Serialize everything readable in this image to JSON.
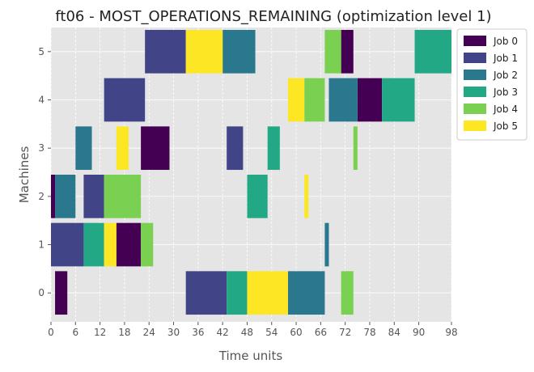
{
  "chart_data": {
    "type": "gantt",
    "title": "ft06 - MOST_OPERATIONS_REMAINING (optimization level 1)",
    "xlabel": "Time units",
    "ylabel": "Machines",
    "xlim": [
      0,
      98
    ],
    "ylim": [
      -0.6,
      5.5
    ],
    "x_ticks": [
      0,
      6,
      12,
      18,
      24,
      30,
      36,
      42,
      48,
      54,
      60,
      66,
      72,
      78,
      84,
      90,
      98
    ],
    "y_ticks": [
      0,
      1,
      2,
      3,
      4,
      5
    ],
    "grid": true,
    "legend_position": "outside-top-right",
    "series": [
      {
        "name": "Job 0",
        "color": "#440154",
        "tasks": [
          {
            "machine": 0,
            "start": 1,
            "end": 4
          },
          {
            "machine": 1,
            "start": 16,
            "end": 22
          },
          {
            "machine": 2,
            "start": 0,
            "end": 1
          },
          {
            "machine": 3,
            "start": 22,
            "end": 29
          },
          {
            "machine": 4,
            "start": 75,
            "end": 81
          },
          {
            "machine": 5,
            "start": 71,
            "end": 74
          }
        ]
      },
      {
        "name": "Job 1",
        "color": "#414487",
        "tasks": [
          {
            "machine": 0,
            "start": 33,
            "end": 43
          },
          {
            "machine": 1,
            "start": 0,
            "end": 8
          },
          {
            "machine": 2,
            "start": 8,
            "end": 13
          },
          {
            "machine": 3,
            "start": 43,
            "end": 47
          },
          {
            "machine": 4,
            "start": 13,
            "end": 23
          },
          {
            "machine": 5,
            "start": 23,
            "end": 33
          }
        ]
      },
      {
        "name": "Job 2",
        "color": "#2a788e",
        "tasks": [
          {
            "machine": 0,
            "start": 58,
            "end": 67
          },
          {
            "machine": 1,
            "start": 67,
            "end": 68
          },
          {
            "machine": 2,
            "start": 1,
            "end": 6
          },
          {
            "machine": 3,
            "start": 6,
            "end": 10
          },
          {
            "machine": 4,
            "start": 68,
            "end": 75
          },
          {
            "machine": 5,
            "start": 42,
            "end": 50
          }
        ]
      },
      {
        "name": "Job 3",
        "color": "#22a884",
        "tasks": [
          {
            "machine": 0,
            "start": 43,
            "end": 48
          },
          {
            "machine": 1,
            "start": 8,
            "end": 13
          },
          {
            "machine": 2,
            "start": 48,
            "end": 53
          },
          {
            "machine": 3,
            "start": 53,
            "end": 56
          },
          {
            "machine": 4,
            "start": 81,
            "end": 89
          },
          {
            "machine": 5,
            "start": 89,
            "end": 98
          }
        ]
      },
      {
        "name": "Job 4",
        "color": "#7ad151",
        "tasks": [
          {
            "machine": 0,
            "start": 71,
            "end": 74
          },
          {
            "machine": 1,
            "start": 22,
            "end": 25
          },
          {
            "machine": 2,
            "start": 13,
            "end": 22
          },
          {
            "machine": 3,
            "start": 74,
            "end": 75
          },
          {
            "machine": 4,
            "start": 62,
            "end": 67
          },
          {
            "machine": 5,
            "start": 67,
            "end": 71
          }
        ]
      },
      {
        "name": "Job 5",
        "color": "#fde725",
        "tasks": [
          {
            "machine": 0,
            "start": 48,
            "end": 58
          },
          {
            "machine": 1,
            "start": 13,
            "end": 16
          },
          {
            "machine": 2,
            "start": 62,
            "end": 63
          },
          {
            "machine": 3,
            "start": 16,
            "end": 19
          },
          {
            "machine": 4,
            "start": 58,
            "end": 62
          },
          {
            "machine": 5,
            "start": 33,
            "end": 42
          }
        ]
      }
    ]
  }
}
